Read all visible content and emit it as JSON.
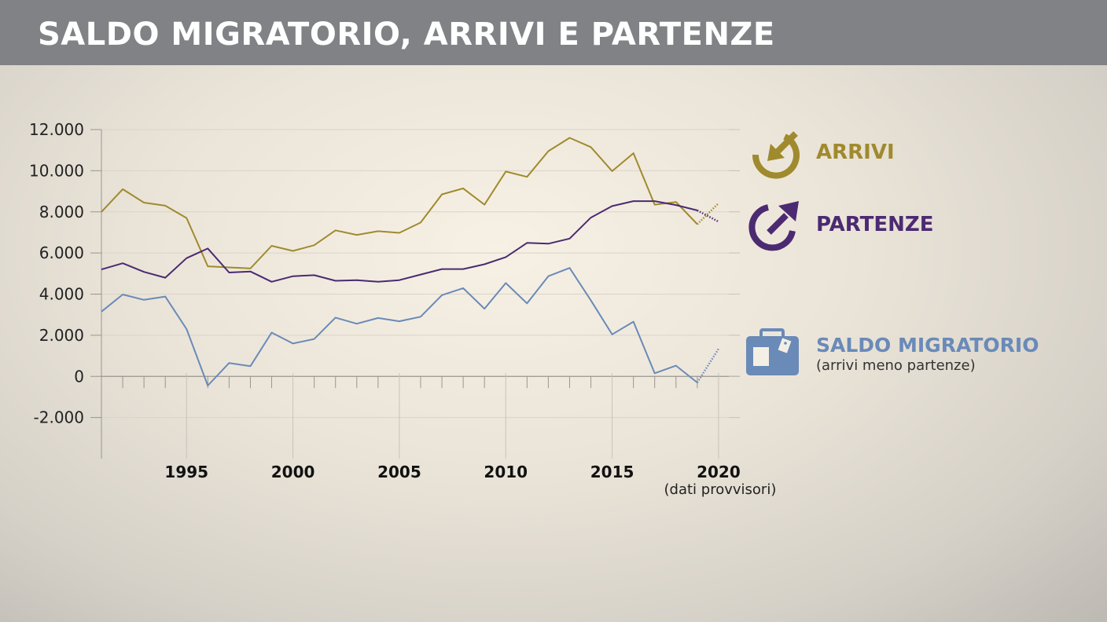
{
  "header": {
    "title": "SALDO MIGRATORIO, ARRIVI E PARTENZE"
  },
  "legend": {
    "arrivi": {
      "label": "ARRIVI",
      "icon": "arrow-in-circle-icon",
      "color": "#a08a2e"
    },
    "partenze": {
      "label": "PARTENZE",
      "icon": "arrow-out-circle-icon",
      "color": "#4b2a72"
    },
    "saldo": {
      "label": "SALDO MIGRATORIO",
      "sublabel": "(arrivi meno partenze)",
      "icon": "suitcase-icon",
      "color": "#6a8ab8"
    }
  },
  "chart_data": {
    "type": "line",
    "x": [
      1991,
      1992,
      1993,
      1994,
      1995,
      1996,
      1997,
      1998,
      1999,
      2000,
      2001,
      2002,
      2003,
      2004,
      2005,
      2006,
      2007,
      2008,
      2009,
      2010,
      2011,
      2012,
      2013,
      2014,
      2015,
      2016,
      2017,
      2018,
      2019,
      2020
    ],
    "xlim": [
      1991,
      2021
    ],
    "ylim": [
      -4000,
      12000
    ],
    "yticks": [
      -2000,
      0,
      2000,
      4000,
      6000,
      8000,
      10000,
      12000
    ],
    "ytick_labels": [
      "-2.000",
      "0",
      "2.000",
      "4.000",
      "6.000",
      "8.000",
      "10.000",
      "12.000"
    ],
    "xticks": [
      1995,
      2000,
      2005,
      2010,
      2015,
      2020
    ],
    "xtick_labels": [
      "1995",
      "2000",
      "2005",
      "2010",
      "2015",
      "2020"
    ],
    "x_note": "(dati provvisori)",
    "provisional_from": 2019,
    "series": [
      {
        "key": "arrivi",
        "color": "#a08a2e",
        "values": [
          8000,
          9100,
          8450,
          8300,
          7700,
          5350,
          5300,
          5250,
          6350,
          6100,
          6380,
          7100,
          6880,
          7060,
          6980,
          7480,
          8850,
          9140,
          8350,
          9960,
          9700,
          10950,
          11600,
          11150,
          9980,
          10850,
          8350,
          8480,
          7400,
          8420
        ]
      },
      {
        "key": "partenze",
        "color": "#4b2a72",
        "values": [
          5200,
          5500,
          5080,
          4800,
          5750,
          6220,
          5050,
          5100,
          4600,
          4870,
          4920,
          4650,
          4680,
          4600,
          4680,
          4950,
          5220,
          5220,
          5450,
          5800,
          6490,
          6450,
          6700,
          7720,
          8280,
          8520,
          8520,
          8330,
          8070,
          7520
        ]
      },
      {
        "key": "saldo",
        "color": "#6a8ab8",
        "values": [
          3150,
          3980,
          3720,
          3880,
          2300,
          -450,
          650,
          500,
          2130,
          1600,
          1820,
          2860,
          2560,
          2840,
          2680,
          2900,
          3950,
          4290,
          3290,
          4540,
          3550,
          4870,
          5270,
          3700,
          2040,
          2660,
          150,
          520,
          -300,
          1340
        ]
      }
    ]
  }
}
